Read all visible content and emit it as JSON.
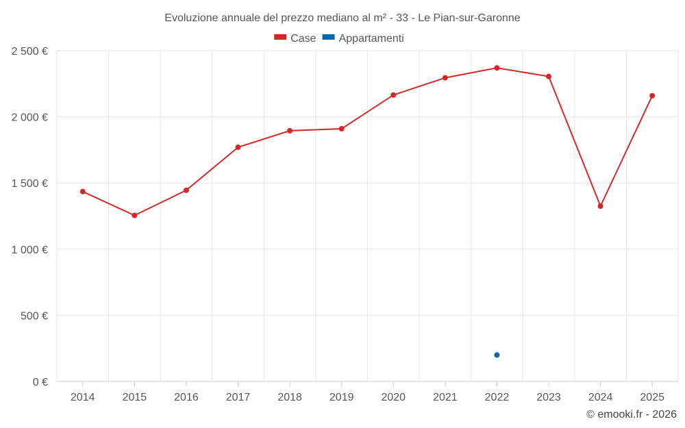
{
  "chart_data": {
    "type": "line",
    "title": "Evoluzione annuale del prezzo mediano al m² - 33 - Le Pian-sur-Garonne",
    "categories": [
      "2014",
      "2015",
      "2016",
      "2017",
      "2018",
      "2019",
      "2020",
      "2021",
      "2022",
      "2023",
      "2024",
      "2025"
    ],
    "series": [
      {
        "name": "Case",
        "color": "#d62728",
        "values": [
          1435,
          1255,
          1445,
          1770,
          1895,
          1910,
          2165,
          2295,
          2370,
          2305,
          1325,
          2160
        ]
      },
      {
        "name": "Appartamenti",
        "color": "#0a6aa8",
        "values": [
          null,
          null,
          null,
          null,
          null,
          null,
          null,
          null,
          200,
          null,
          null,
          null
        ]
      }
    ],
    "ylim": [
      0,
      2500
    ],
    "yticks": [
      {
        "value": 0,
        "label": "0 €"
      },
      {
        "value": 500,
        "label": "500 €"
      },
      {
        "value": 1000,
        "label": "1 000 €"
      },
      {
        "value": 1500,
        "label": "1 500 €"
      },
      {
        "value": 2000,
        "label": "2 000 €"
      },
      {
        "value": 2500,
        "label": "2 500 €"
      }
    ],
    "grid": true,
    "legend_position": "top-center",
    "xlabel": "",
    "ylabel": ""
  },
  "credit": "© emooki.fr - 2026"
}
